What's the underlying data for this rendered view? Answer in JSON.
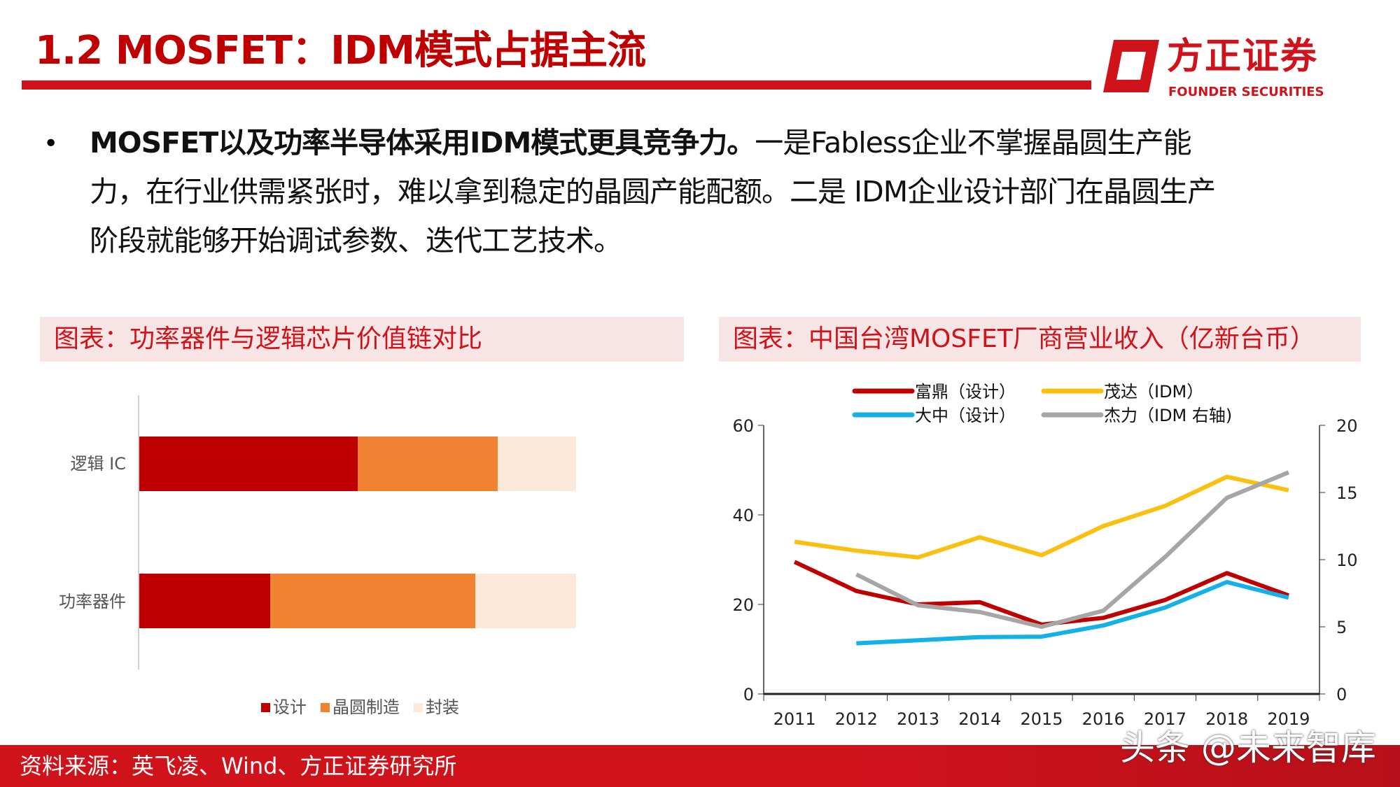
{
  "header": {
    "title": "1.2 MOSFET：IDM模式占据主流",
    "logo_cn": "方正证券",
    "logo_en": "FOUNDER SECURITIES",
    "colors": {
      "brand": "#d0121b"
    }
  },
  "body": {
    "bold": "MOSFET以及功率半导体采用IDM模式更具竞争力。",
    "line1_rest": "一是Fabless企业不掌握晶圆生产能",
    "line2": "力，在行业供需紧张时，难以拿到稳定的晶圆产能配额。二是 IDM企业设计部门在晶圆生产",
    "line3": "阶段就能够开始调试参数、迭代工艺技术。"
  },
  "left_panel": {
    "title": "图表：功率器件与逻辑芯片价值链对比"
  },
  "right_panel": {
    "title": "图表：中国台湾MOSFET厂商营业收入（亿新台币）"
  },
  "chart_data": [
    {
      "type": "bar",
      "stacked": true,
      "orientation": "horizontal",
      "categories": [
        "逻辑 IC",
        "功率器件"
      ],
      "series": [
        {
          "name": "设计",
          "color": "#c00000",
          "values": [
            50,
            30
          ]
        },
        {
          "name": "晶圆制造",
          "color": "#f08232",
          "values": [
            32,
            47
          ]
        },
        {
          "name": "封装",
          "color": "#fde9d9",
          "values": [
            18,
            23
          ]
        }
      ],
      "unit": "share of value chain (%)",
      "legend": "bottom"
    },
    {
      "type": "line",
      "x": [
        2011,
        2012,
        2013,
        2014,
        2015,
        2016,
        2017,
        2018,
        2019
      ],
      "ylim": [
        0,
        60
      ],
      "yticks": [
        0,
        20,
        40,
        60
      ],
      "y2lim": [
        0,
        20
      ],
      "y2ticks": [
        0,
        5,
        10,
        15,
        20
      ],
      "legend": "top",
      "series": [
        {
          "name": "富鼎（设计）",
          "color": "#c00000",
          "axis": "left",
          "values": [
            29.5,
            23,
            20,
            20.5,
            15.5,
            17,
            21,
            27,
            22
          ]
        },
        {
          "name": "茂达（IDM）",
          "color": "#fbbf0f",
          "axis": "left",
          "values": [
            34,
            32,
            30.5,
            35,
            31,
            37.5,
            42,
            48.5,
            45.5
          ]
        },
        {
          "name": "大中（设计）",
          "color": "#14b0e8",
          "axis": "left",
          "values": [
            null,
            11.3,
            12,
            12.7,
            12.8,
            15.3,
            19.3,
            25,
            21.5
          ]
        },
        {
          "name": "杰力（IDM 右轴)",
          "color": "#a6a6a6",
          "axis": "right",
          "values": [
            null,
            8.9,
            6.6,
            6.1,
            5,
            6.2,
            10.2,
            14.6,
            16.5
          ]
        }
      ]
    }
  ],
  "footer": {
    "source": "资料来源：英飞凌、Wind、方正证券研究所",
    "watermark": "头条 @未来智库"
  }
}
